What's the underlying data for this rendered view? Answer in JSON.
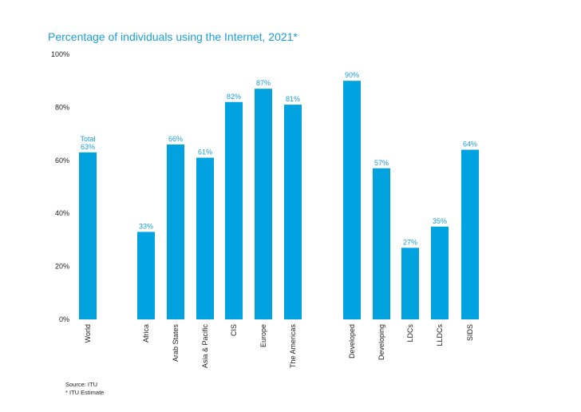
{
  "chart_data": {
    "type": "bar",
    "title": "Percentage of individuals using the Internet, 2021*",
    "xlabel": "",
    "ylabel": "",
    "ylim": [
      0,
      100
    ],
    "grid": false,
    "yticks": [
      "0%",
      "20%",
      "40%",
      "60%",
      "80%",
      "100%"
    ],
    "categories": [
      "World",
      "Africa",
      "Arab States",
      "Asia & Pacific",
      "CIS",
      "Europe",
      "The Americas",
      "Developed",
      "Developing",
      "LDCs",
      "LLDCs",
      "SIDS"
    ],
    "values": [
      63,
      33,
      66,
      61,
      82,
      87,
      81,
      90,
      57,
      27,
      35,
      64
    ],
    "data_labels": [
      "63%",
      "33%",
      "66%",
      "61%",
      "82%",
      "87%",
      "81%",
      "90%",
      "57%",
      "27%",
      "35%",
      "64%"
    ],
    "annotations": [
      {
        "category": "World",
        "text": "Total"
      }
    ],
    "bar_color": "#00a3e0",
    "title_color": "#1a9fd6"
  },
  "footnotes": {
    "source": "Source: ITU",
    "estimate": "* ITU Estimate"
  }
}
